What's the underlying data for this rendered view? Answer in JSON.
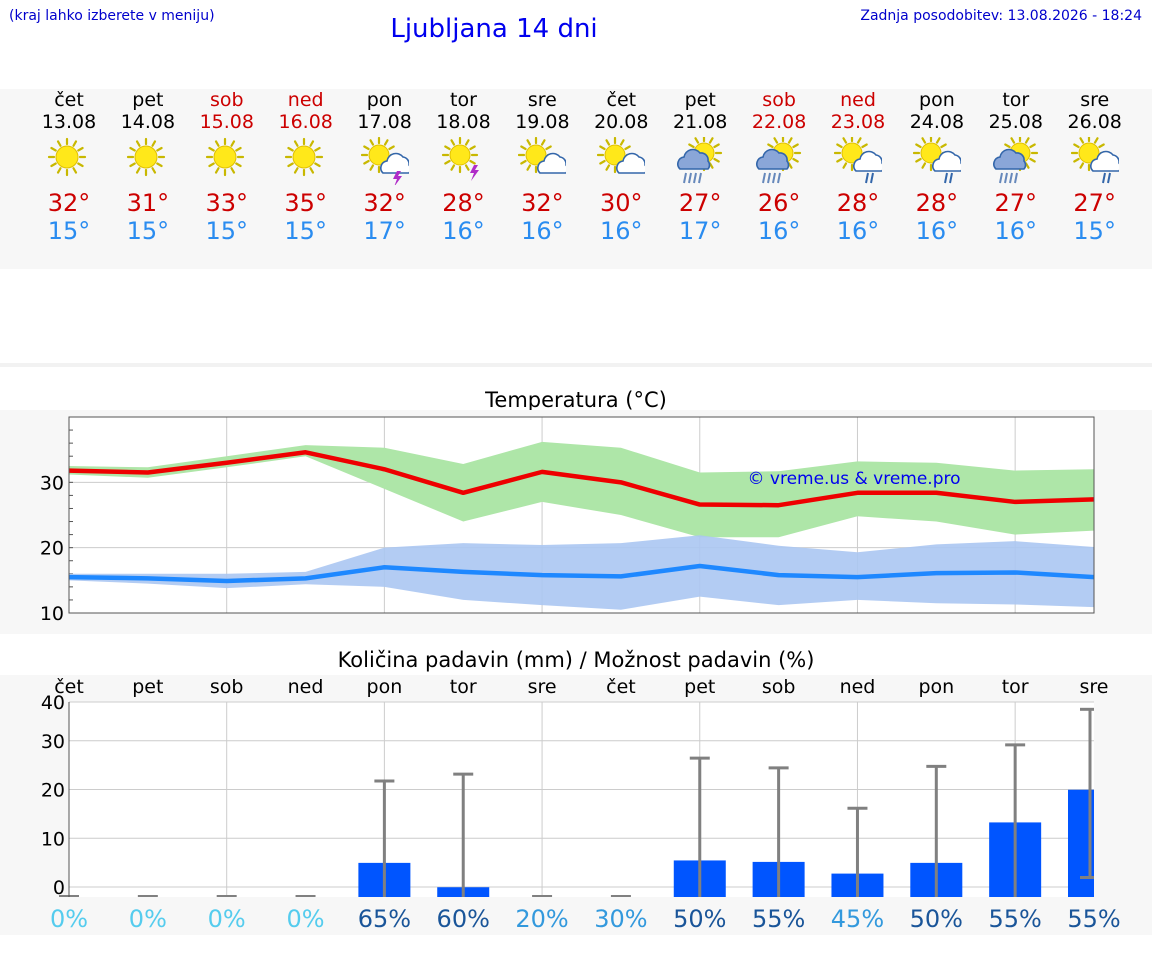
{
  "header": {
    "hint": "(kraj lahko izberete v meniju)",
    "title": "Ljubljana 14 dni",
    "updated": "Zadnja posodobitev: 13.08.2026 - 18:24"
  },
  "colors": {
    "weekday": "#000000",
    "weekend": "#cc0000",
    "tmax": "#cc0000",
    "tmin": "#2a8cf0",
    "max_line": "#ee0000",
    "max_band": "#aee6a8",
    "min_line": "#1e88ff",
    "min_band": "#abc6f2",
    "precip_bar": "#0055ff",
    "error_bar": "#808080"
  },
  "days": [
    {
      "name": "čet",
      "date": "13.08",
      "weekend": false,
      "icon": "sun-icon",
      "tmax": "32°",
      "tmin": "15°"
    },
    {
      "name": "pet",
      "date": "14.08",
      "weekend": false,
      "icon": "sun-icon",
      "tmax": "31°",
      "tmin": "15°"
    },
    {
      "name": "sob",
      "date": "15.08",
      "weekend": true,
      "icon": "sun-icon",
      "tmax": "33°",
      "tmin": "15°"
    },
    {
      "name": "ned",
      "date": "16.08",
      "weekend": true,
      "icon": "sun-icon",
      "tmax": "35°",
      "tmin": "15°"
    },
    {
      "name": "pon",
      "date": "17.08",
      "weekend": false,
      "icon": "sun-cloud-thunder-icon",
      "tmax": "32°",
      "tmin": "17°"
    },
    {
      "name": "tor",
      "date": "18.08",
      "weekend": false,
      "icon": "sun-thunder-icon",
      "tmax": "28°",
      "tmin": "16°"
    },
    {
      "name": "sre",
      "date": "19.08",
      "weekend": false,
      "icon": "sun-cloud-icon",
      "tmax": "32°",
      "tmin": "16°"
    },
    {
      "name": "čet",
      "date": "20.08",
      "weekend": false,
      "icon": "sun-cloud-icon",
      "tmax": "30°",
      "tmin": "16°"
    },
    {
      "name": "pet",
      "date": "21.08",
      "weekend": false,
      "icon": "sun-rain-cloud-icon",
      "tmax": "27°",
      "tmin": "17°"
    },
    {
      "name": "sob",
      "date": "22.08",
      "weekend": true,
      "icon": "sun-rain-cloud-icon",
      "tmax": "26°",
      "tmin": "16°"
    },
    {
      "name": "ned",
      "date": "23.08",
      "weekend": true,
      "icon": "sun-cloud-rain-icon",
      "tmax": "28°",
      "tmin": "16°"
    },
    {
      "name": "pon",
      "date": "24.08",
      "weekend": false,
      "icon": "sun-cloud-rain-icon",
      "tmax": "28°",
      "tmin": "16°"
    },
    {
      "name": "tor",
      "date": "25.08",
      "weekend": false,
      "icon": "sun-rain-cloud-icon",
      "tmax": "27°",
      "tmin": "16°"
    },
    {
      "name": "sre",
      "date": "26.08",
      "weekend": false,
      "icon": "sun-cloud-rain-icon",
      "tmax": "27°",
      "tmin": "15°"
    }
  ],
  "chart_data": [
    {
      "type": "line",
      "title": "Temperatura (°C)",
      "watermark": "© vreme.us & vreme.pro",
      "ylim": [
        10,
        40
      ],
      "yticks": [
        10,
        20,
        30
      ],
      "x": [
        0,
        1,
        2,
        3,
        4,
        5,
        6,
        7,
        8,
        9,
        10,
        11,
        12,
        13
      ],
      "grid": true,
      "series": [
        {
          "values": [
            31.8,
            31.5,
            33.0,
            34.6,
            32.0,
            28.4,
            31.6,
            30.0,
            26.6,
            26.5,
            28.4,
            28.4,
            27.0,
            27.4
          ],
          "band_high": [
            32.5,
            32.3,
            34.0,
            35.7,
            35.3,
            32.8,
            36.2,
            35.3,
            31.5,
            31.7,
            33.2,
            33.0,
            31.8,
            32.0
          ],
          "band_low": [
            31.2,
            30.7,
            32.3,
            34.0,
            29.0,
            24.0,
            27.0,
            25.0,
            21.6,
            21.6,
            24.8,
            24.0,
            22.0,
            22.6
          ]
        },
        {
          "values": [
            15.5,
            15.3,
            14.9,
            15.3,
            17.0,
            16.3,
            15.8,
            15.6,
            17.2,
            15.8,
            15.5,
            16.1,
            16.2,
            15.5
          ],
          "band_high": [
            16.0,
            16.0,
            16.0,
            16.3,
            20.0,
            20.7,
            20.4,
            20.7,
            21.9,
            20.3,
            19.3,
            20.5,
            21.0,
            20.1
          ],
          "band_low": [
            15.0,
            14.5,
            13.8,
            14.4,
            14.0,
            12.0,
            11.2,
            10.5,
            12.5,
            11.2,
            12.0,
            11.5,
            11.3,
            10.9
          ]
        }
      ]
    },
    {
      "type": "bar",
      "title": "Količina padavin (mm) / Možnost padavin (%)",
      "categories": [
        "čet",
        "pet",
        "sob",
        "ned",
        "pon",
        "tor",
        "sre",
        "čet",
        "pet",
        "sob",
        "ned",
        "pon",
        "tor",
        "sre"
      ],
      "values": [
        0,
        0,
        0,
        0,
        7,
        2,
        0,
        0,
        7.5,
        7.2,
        4.8,
        7,
        15.3,
        22
      ],
      "error_high": [
        0,
        0,
        0,
        0,
        23.8,
        25.2,
        0,
        0,
        28.5,
        26.5,
        18.2,
        26.8,
        31.2,
        38.5
      ],
      "error_low": [
        0,
        0,
        0,
        0,
        0,
        0,
        0,
        0,
        0,
        0,
        0,
        0,
        0,
        4
      ],
      "probability": [
        "0%",
        "0%",
        "0%",
        "0%",
        "65%",
        "60%",
        "20%",
        "30%",
        "50%",
        "55%",
        "45%",
        "50%",
        "55%",
        "55%"
      ],
      "probability_colors": [
        "#55ccee",
        "#55ccee",
        "#55ccee",
        "#55ccee",
        "#1a5599",
        "#1a5599",
        "#3399dd",
        "#3399dd",
        "#1a5599",
        "#1a5599",
        "#3399dd",
        "#1a5599",
        "#1a5599",
        "#1a5599"
      ],
      "ylim": [
        0,
        40
      ],
      "yticks": [
        0,
        10,
        20,
        30,
        40
      ],
      "grid": true
    }
  ]
}
